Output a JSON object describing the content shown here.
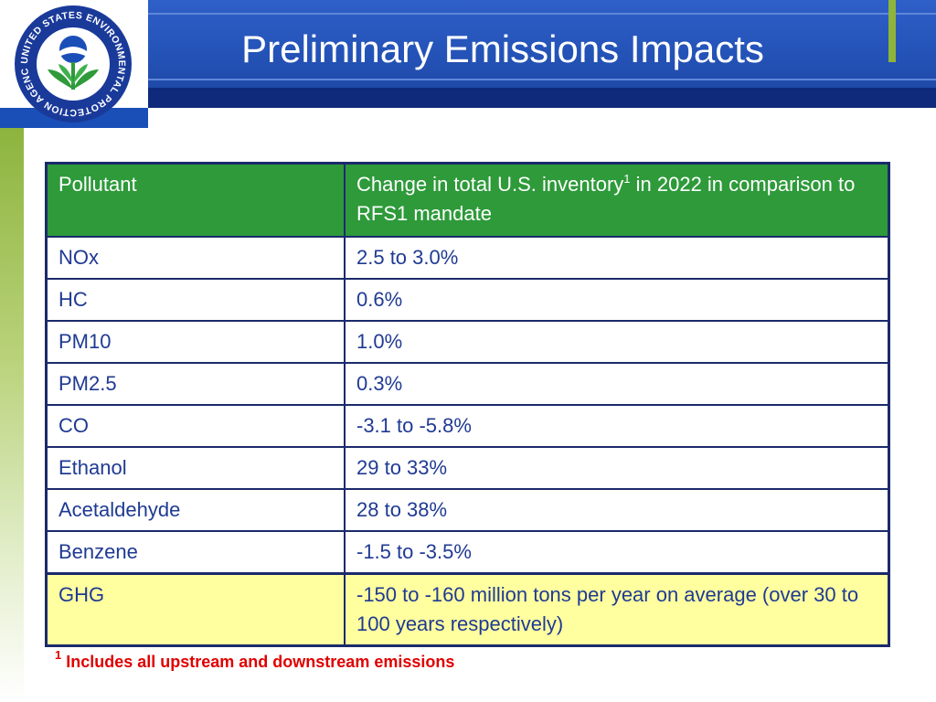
{
  "slide": {
    "title": "Preliminary Emissions Impacts",
    "logo_text": "UNITED STATES ENVIRONMENTAL PROTECTION AGENCY"
  },
  "table": {
    "headers": {
      "pollutant": "Pollutant",
      "change_pre": "Change in total U.S. inventory",
      "change_sup": "1",
      "change_post": " in 2022 in comparison to RFS1 mandate"
    },
    "rows": [
      {
        "pollutant": "NOx",
        "change": "2.5 to 3.0%"
      },
      {
        "pollutant": "HC",
        "change": "0.6%"
      },
      {
        "pollutant": "PM10",
        "change": "1.0%"
      },
      {
        "pollutant": "PM2.5",
        "change": "0.3%"
      },
      {
        "pollutant": "CO",
        "change": "-3.1 to -5.8%"
      },
      {
        "pollutant": "Ethanol",
        "change": "29 to 33%"
      },
      {
        "pollutant": "Acetaldehyde",
        "change": "28 to 38%"
      },
      {
        "pollutant": "Benzene",
        "change": "-1.5 to -3.5%"
      },
      {
        "pollutant": "GHG",
        "change": "-150 to -160 million tons per year on average (over 30 to 100 years respectively)"
      }
    ]
  },
  "footnote": {
    "marker": "1",
    "text": " Includes all upstream and downstream emissions"
  },
  "colors": {
    "header_blue": "#2453b8",
    "table_header_green": "#2e9a3a",
    "ghg_highlight": "#ffff9f",
    "footnote_red": "#e00000",
    "table_text": "#1f3a93"
  }
}
